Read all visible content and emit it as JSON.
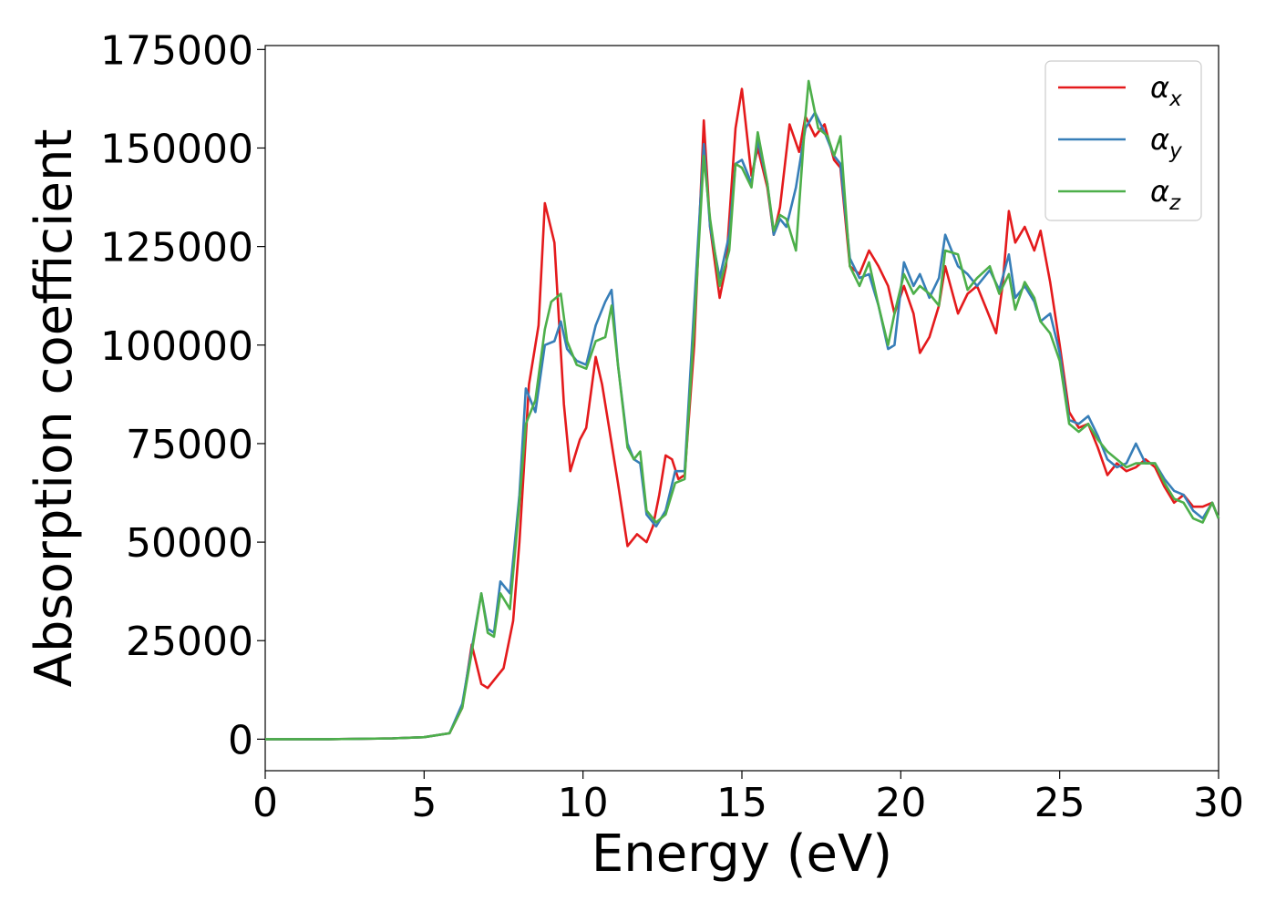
{
  "chart_data": {
    "type": "line",
    "title": "",
    "xlabel": "Energy (eV)",
    "ylabel": "Absorption coefficient",
    "xlim": [
      0,
      30
    ],
    "ylim": [
      -8000,
      176000
    ],
    "xticks": [
      0,
      5,
      10,
      15,
      20,
      25,
      30
    ],
    "yticks": [
      0,
      25000,
      50000,
      75000,
      100000,
      125000,
      150000,
      175000
    ],
    "grid": false,
    "legend_position": "top-right",
    "series": [
      {
        "name": "α_x",
        "legend_main": "α",
        "legend_sub": "x",
        "color": "#e41a1c",
        "points": [
          [
            0,
            0
          ],
          [
            2,
            0
          ],
          [
            4,
            200
          ],
          [
            5,
            500
          ],
          [
            5.8,
            1500
          ],
          [
            6.2,
            8000
          ],
          [
            6.5,
            24000
          ],
          [
            6.8,
            14000
          ],
          [
            7.0,
            13000
          ],
          [
            7.3,
            16000
          ],
          [
            7.5,
            18000
          ],
          [
            7.8,
            30000
          ],
          [
            8.0,
            50000
          ],
          [
            8.3,
            90000
          ],
          [
            8.6,
            105000
          ],
          [
            8.8,
            136000
          ],
          [
            9.1,
            126000
          ],
          [
            9.4,
            85000
          ],
          [
            9.6,
            68000
          ],
          [
            9.9,
            76000
          ],
          [
            10.1,
            79000
          ],
          [
            10.4,
            97000
          ],
          [
            10.6,
            90000
          ],
          [
            10.8,
            80000
          ],
          [
            11.1,
            65000
          ],
          [
            11.4,
            49000
          ],
          [
            11.7,
            52000
          ],
          [
            12.0,
            50000
          ],
          [
            12.2,
            54000
          ],
          [
            12.4,
            62000
          ],
          [
            12.6,
            72000
          ],
          [
            12.8,
            71000
          ],
          [
            13.0,
            66000
          ],
          [
            13.2,
            67000
          ],
          [
            13.5,
            100000
          ],
          [
            13.8,
            157000
          ],
          [
            14.0,
            130000
          ],
          [
            14.3,
            112000
          ],
          [
            14.5,
            120000
          ],
          [
            14.8,
            155000
          ],
          [
            15.0,
            165000
          ],
          [
            15.3,
            143000
          ],
          [
            15.5,
            150000
          ],
          [
            15.8,
            140000
          ],
          [
            16.0,
            128000
          ],
          [
            16.2,
            135000
          ],
          [
            16.5,
            156000
          ],
          [
            16.8,
            149000
          ],
          [
            17.0,
            158000
          ],
          [
            17.3,
            153000
          ],
          [
            17.6,
            156000
          ],
          [
            17.9,
            147000
          ],
          [
            18.1,
            145000
          ],
          [
            18.4,
            120000
          ],
          [
            18.7,
            118000
          ],
          [
            19.0,
            124000
          ],
          [
            19.3,
            120000
          ],
          [
            19.6,
            115000
          ],
          [
            19.8,
            108000
          ],
          [
            20.1,
            115000
          ],
          [
            20.4,
            108000
          ],
          [
            20.6,
            98000
          ],
          [
            20.9,
            102000
          ],
          [
            21.2,
            110000
          ],
          [
            21.4,
            120000
          ],
          [
            21.8,
            108000
          ],
          [
            22.1,
            113000
          ],
          [
            22.4,
            115000
          ],
          [
            22.7,
            109000
          ],
          [
            23.0,
            103000
          ],
          [
            23.2,
            115000
          ],
          [
            23.4,
            134000
          ],
          [
            23.6,
            126000
          ],
          [
            23.9,
            130000
          ],
          [
            24.2,
            124000
          ],
          [
            24.4,
            129000
          ],
          [
            24.7,
            116000
          ],
          [
            25.0,
            100000
          ],
          [
            25.3,
            83000
          ],
          [
            25.6,
            79000
          ],
          [
            25.9,
            80000
          ],
          [
            26.2,
            74000
          ],
          [
            26.5,
            67000
          ],
          [
            26.8,
            70000
          ],
          [
            27.1,
            68000
          ],
          [
            27.4,
            69000
          ],
          [
            27.7,
            71000
          ],
          [
            28.0,
            69000
          ],
          [
            28.3,
            64000
          ],
          [
            28.6,
            60000
          ],
          [
            28.9,
            62000
          ],
          [
            29.2,
            59000
          ],
          [
            29.5,
            59000
          ],
          [
            29.8,
            60000
          ],
          [
            30.0,
            56000
          ]
        ]
      },
      {
        "name": "α_y",
        "legend_main": "α",
        "legend_sub": "y",
        "color": "#377eb8",
        "points": [
          [
            0,
            0
          ],
          [
            2,
            0
          ],
          [
            4,
            200
          ],
          [
            5,
            500
          ],
          [
            5.8,
            1500
          ],
          [
            6.2,
            9000
          ],
          [
            6.5,
            23000
          ],
          [
            6.8,
            37000
          ],
          [
            7.0,
            28000
          ],
          [
            7.2,
            27000
          ],
          [
            7.4,
            40000
          ],
          [
            7.7,
            37000
          ],
          [
            8.0,
            62000
          ],
          [
            8.2,
            89000
          ],
          [
            8.5,
            83000
          ],
          [
            8.8,
            100000
          ],
          [
            9.1,
            101000
          ],
          [
            9.3,
            106000
          ],
          [
            9.5,
            99000
          ],
          [
            9.8,
            96000
          ],
          [
            10.1,
            95000
          ],
          [
            10.4,
            105000
          ],
          [
            10.7,
            111000
          ],
          [
            10.9,
            114000
          ],
          [
            11.1,
            95000
          ],
          [
            11.4,
            75000
          ],
          [
            11.6,
            71000
          ],
          [
            11.8,
            70000
          ],
          [
            12.0,
            57000
          ],
          [
            12.3,
            54000
          ],
          [
            12.6,
            58000
          ],
          [
            12.9,
            68000
          ],
          [
            13.2,
            68000
          ],
          [
            13.5,
            110000
          ],
          [
            13.8,
            151000
          ],
          [
            14.0,
            130000
          ],
          [
            14.3,
            117000
          ],
          [
            14.6,
            128000
          ],
          [
            14.8,
            146000
          ],
          [
            15.0,
            147000
          ],
          [
            15.3,
            141000
          ],
          [
            15.5,
            152000
          ],
          [
            15.8,
            141000
          ],
          [
            16.0,
            128000
          ],
          [
            16.2,
            132000
          ],
          [
            16.4,
            130000
          ],
          [
            16.7,
            140000
          ],
          [
            17.0,
            155000
          ],
          [
            17.3,
            159000
          ],
          [
            17.6,
            154000
          ],
          [
            17.9,
            148000
          ],
          [
            18.1,
            146000
          ],
          [
            18.4,
            122000
          ],
          [
            18.7,
            117000
          ],
          [
            19.0,
            118000
          ],
          [
            19.3,
            110000
          ],
          [
            19.6,
            99000
          ],
          [
            19.8,
            100000
          ],
          [
            20.1,
            121000
          ],
          [
            20.4,
            115000
          ],
          [
            20.6,
            118000
          ],
          [
            20.9,
            112000
          ],
          [
            21.2,
            117000
          ],
          [
            21.4,
            128000
          ],
          [
            21.8,
            120000
          ],
          [
            22.1,
            118000
          ],
          [
            22.4,
            115000
          ],
          [
            22.8,
            119000
          ],
          [
            23.1,
            114000
          ],
          [
            23.4,
            123000
          ],
          [
            23.6,
            112000
          ],
          [
            23.9,
            115000
          ],
          [
            24.2,
            111000
          ],
          [
            24.4,
            106000
          ],
          [
            24.7,
            108000
          ],
          [
            25.0,
            98000
          ],
          [
            25.3,
            81000
          ],
          [
            25.6,
            80000
          ],
          [
            25.9,
            82000
          ],
          [
            26.2,
            77000
          ],
          [
            26.5,
            71000
          ],
          [
            26.8,
            69000
          ],
          [
            27.1,
            70000
          ],
          [
            27.4,
            75000
          ],
          [
            27.7,
            70000
          ],
          [
            28.0,
            70000
          ],
          [
            28.3,
            66000
          ],
          [
            28.6,
            63000
          ],
          [
            28.9,
            62000
          ],
          [
            29.2,
            58000
          ],
          [
            29.5,
            56000
          ],
          [
            29.8,
            60000
          ],
          [
            30.0,
            56000
          ]
        ]
      },
      {
        "name": "α_z",
        "legend_main": "α",
        "legend_sub": "z",
        "color": "#4daf4a",
        "points": [
          [
            0,
            0
          ],
          [
            2,
            0
          ],
          [
            4,
            200
          ],
          [
            5,
            500
          ],
          [
            5.8,
            1500
          ],
          [
            6.2,
            8000
          ],
          [
            6.5,
            22000
          ],
          [
            6.8,
            37000
          ],
          [
            7.0,
            27000
          ],
          [
            7.2,
            26000
          ],
          [
            7.4,
            37000
          ],
          [
            7.7,
            33000
          ],
          [
            8.0,
            60000
          ],
          [
            8.2,
            80000
          ],
          [
            8.5,
            86000
          ],
          [
            8.8,
            104000
          ],
          [
            9.0,
            111000
          ],
          [
            9.3,
            113000
          ],
          [
            9.5,
            101000
          ],
          [
            9.8,
            95000
          ],
          [
            10.1,
            94000
          ],
          [
            10.4,
            101000
          ],
          [
            10.7,
            102000
          ],
          [
            10.9,
            110000
          ],
          [
            11.1,
            95000
          ],
          [
            11.4,
            74000
          ],
          [
            11.6,
            71000
          ],
          [
            11.8,
            73000
          ],
          [
            12.0,
            58000
          ],
          [
            12.3,
            55000
          ],
          [
            12.6,
            57000
          ],
          [
            12.9,
            65000
          ],
          [
            13.2,
            66000
          ],
          [
            13.5,
            105000
          ],
          [
            13.8,
            148000
          ],
          [
            14.0,
            132000
          ],
          [
            14.3,
            115000
          ],
          [
            14.6,
            124000
          ],
          [
            14.8,
            146000
          ],
          [
            15.0,
            145000
          ],
          [
            15.3,
            140000
          ],
          [
            15.5,
            154000
          ],
          [
            15.8,
            141000
          ],
          [
            16.0,
            129000
          ],
          [
            16.2,
            133000
          ],
          [
            16.4,
            132000
          ],
          [
            16.7,
            124000
          ],
          [
            17.0,
            158000
          ],
          [
            17.1,
            167000
          ],
          [
            17.4,
            155000
          ],
          [
            17.7,
            153000
          ],
          [
            17.9,
            148000
          ],
          [
            18.1,
            153000
          ],
          [
            18.4,
            120000
          ],
          [
            18.7,
            115000
          ],
          [
            19.0,
            121000
          ],
          [
            19.3,
            110000
          ],
          [
            19.6,
            100000
          ],
          [
            19.8,
            108000
          ],
          [
            20.1,
            118000
          ],
          [
            20.4,
            113000
          ],
          [
            20.6,
            115000
          ],
          [
            20.9,
            113000
          ],
          [
            21.2,
            110000
          ],
          [
            21.4,
            124000
          ],
          [
            21.8,
            123000
          ],
          [
            22.1,
            114000
          ],
          [
            22.4,
            117000
          ],
          [
            22.8,
            120000
          ],
          [
            23.1,
            113000
          ],
          [
            23.4,
            118000
          ],
          [
            23.6,
            109000
          ],
          [
            23.9,
            116000
          ],
          [
            24.2,
            112000
          ],
          [
            24.4,
            106000
          ],
          [
            24.7,
            103000
          ],
          [
            25.0,
            96000
          ],
          [
            25.3,
            80000
          ],
          [
            25.6,
            78000
          ],
          [
            25.9,
            80000
          ],
          [
            26.2,
            76000
          ],
          [
            26.5,
            73000
          ],
          [
            26.8,
            71000
          ],
          [
            27.1,
            69000
          ],
          [
            27.4,
            70000
          ],
          [
            27.7,
            70000
          ],
          [
            28.0,
            70000
          ],
          [
            28.3,
            65000
          ],
          [
            28.6,
            61000
          ],
          [
            28.9,
            60000
          ],
          [
            29.2,
            56000
          ],
          [
            29.5,
            55000
          ],
          [
            29.8,
            60000
          ],
          [
            30.0,
            56000
          ]
        ]
      }
    ]
  }
}
